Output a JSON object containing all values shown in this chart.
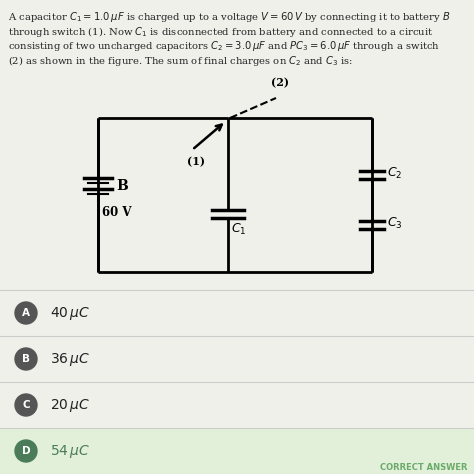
{
  "title_lines": [
    "A capacitor $C_1 = 1.0\\,\\mu F$ is charged up to a voltage $V = 60\\,V$ by connecting it to battery $B$",
    "through switch (1). Now $C_1$ is disconnected from battery and connected to a circuit",
    "consisting of two uncharged capacitors $C_2 = 3.0\\,\\mu F$ and $PC_3 = 6.0\\,\\mu F$ through a switch",
    "(2) as shown in the figure. The sum of final charges on $C_2$ and $C_3$ is:"
  ],
  "options": [
    {
      "label": "A",
      "text": "$40\\,\\mu C$",
      "correct": false
    },
    {
      "label": "B",
      "text": "$36\\,\\mu C$",
      "correct": false
    },
    {
      "label": "C",
      "text": "$20\\,\\mu C$",
      "correct": false
    },
    {
      "label": "D",
      "text": "$54\\,\\mu C$",
      "correct": true
    }
  ],
  "bg_color": "#f0f0eb",
  "correct_bg": "#e2f0d9",
  "text_color": "#222222",
  "option_circle_color": "#555555",
  "correct_circle_color": "#4a7c59",
  "divider_color": "#cccccc",
  "correct_answer_color": "#6aaa6a"
}
